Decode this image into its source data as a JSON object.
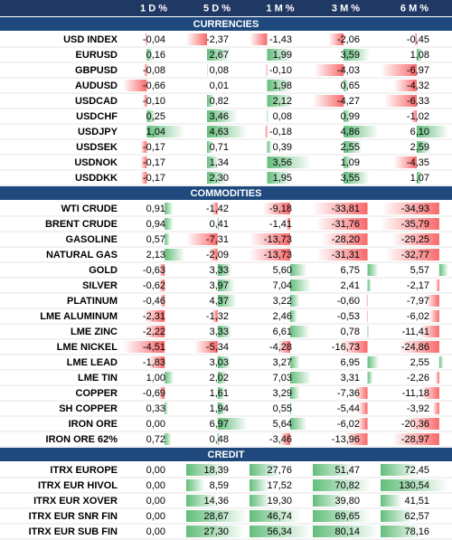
{
  "header": {
    "columns": [
      "1 D %",
      "5 D %",
      "1 M %",
      "3 M %",
      "6 M %"
    ]
  },
  "sections": [
    {
      "title": "CURRENCIES",
      "rows": [
        {
          "label": "USD INDEX",
          "values": [
            "-0,04",
            "-2,37",
            "-1,43",
            "-2,06",
            "-0,45"
          ]
        },
        {
          "label": "EURUSD",
          "values": [
            "0,16",
            "2,67",
            "1,99",
            "3,59",
            "1,08"
          ]
        },
        {
          "label": "GBPUSD",
          "values": [
            "-0,08",
            "0,08",
            "-0,10",
            "-4,03",
            "-6,97"
          ]
        },
        {
          "label": "AUDUSD",
          "values": [
            "-0,66",
            "0,01",
            "1,98",
            "0,65",
            "-4,32"
          ]
        },
        {
          "label": "USDCAD",
          "values": [
            "-0,10",
            "0,82",
            "2,12",
            "-4,27",
            "-6,33"
          ]
        },
        {
          "label": "USDCHF",
          "values": [
            "0,25",
            "3,46",
            "0,08",
            "0,99",
            "-1,02"
          ]
        },
        {
          "label": "USDJPY",
          "values": [
            "1,04",
            "4,63",
            "-0,18",
            "4,86",
            "6,10"
          ]
        },
        {
          "label": "USDSEK",
          "values": [
            "-0,17",
            "0,71",
            "0,39",
            "2,55",
            "2,59"
          ]
        },
        {
          "label": "USDNOK",
          "values": [
            "-0,17",
            "1,34",
            "3,56",
            "1,09",
            "-4,35"
          ]
        },
        {
          "label": "USDDKK",
          "values": [
            "-0,17",
            "2,30",
            "1,95",
            "3,55",
            "1,07"
          ]
        }
      ]
    },
    {
      "title": "COMMODITIES",
      "rows": [
        {
          "label": "WTI CRUDE",
          "values": [
            "0,91",
            "-1,42",
            "-9,18",
            "-33,81",
            "-34,93"
          ]
        },
        {
          "label": "BRENT CRUDE",
          "values": [
            "0,94",
            "0,41",
            "-1,41",
            "-31,76",
            "-35,79"
          ]
        },
        {
          "label": "GASOLINE",
          "values": [
            "0,57",
            "-7,31",
            "-13,73",
            "-28,20",
            "-29,25"
          ]
        },
        {
          "label": "NATURAL GAS",
          "values": [
            "2,13",
            "-2,09",
            "-13,73",
            "-31,31",
            "-32,77"
          ]
        },
        {
          "label": "GOLD",
          "values": [
            "-0,63",
            "3,33",
            "5,60",
            "6,75",
            "5,57"
          ]
        },
        {
          "label": "SILVER",
          "values": [
            "-0,62",
            "3,97",
            "7,04",
            "2,41",
            "-2,17"
          ]
        },
        {
          "label": "PLATINUM",
          "values": [
            "-0,46",
            "4,37",
            "3,22",
            "-0,60",
            "-7,97"
          ]
        },
        {
          "label": "LME ALUMINUM",
          "values": [
            "-2,31",
            "-1,32",
            "2,46",
            "-0,53",
            "-6,02"
          ]
        },
        {
          "label": "LME ZINC",
          "values": [
            "-2,22",
            "3,33",
            "6,61",
            "0,78",
            "-11,41"
          ]
        },
        {
          "label": "LME NICKEL",
          "values": [
            "-4,51",
            "-5,34",
            "-4,28",
            "-16,73",
            "-24,86"
          ]
        },
        {
          "label": "LME LEAD",
          "values": [
            "-1,83",
            "3,03",
            "3,27",
            "6,95",
            "2,55"
          ]
        },
        {
          "label": "LME TIN",
          "values": [
            "1,00",
            "2,02",
            "7,03",
            "3,31",
            "-2,26"
          ]
        },
        {
          "label": "COPPER",
          "values": [
            "-0,69",
            "1,61",
            "3,29",
            "-7,36",
            "-11,18"
          ]
        },
        {
          "label": "SH COPPER",
          "values": [
            "0,33",
            "1,94",
            "0,55",
            "-5,44",
            "-3,92"
          ]
        },
        {
          "label": "IRON ORE",
          "values": [
            "0,00",
            "6,97",
            "5,64",
            "-6,02",
            "-20,36"
          ]
        },
        {
          "label": "IRON ORE 62%",
          "values": [
            "0,72",
            "0,48",
            "-3,46",
            "-13,96",
            "-28,97"
          ]
        }
      ]
    },
    {
      "title": "CREDIT",
      "rows": [
        {
          "label": "ITRX EUROPE",
          "values": [
            "0,00",
            "18,39",
            "27,76",
            "51,47",
            "72,45"
          ]
        },
        {
          "label": "ITRX EUR HIVOL",
          "values": [
            "0,00",
            "8,59",
            "17,52",
            "70,82",
            "130,54"
          ]
        },
        {
          "label": "ITRX EUR XOVER",
          "values": [
            "0,00",
            "14,36",
            "19,30",
            "39,80",
            "41,51"
          ]
        },
        {
          "label": "ITRX EUR SNR FIN",
          "values": [
            "0,00",
            "28,67",
            "46,74",
            "69,65",
            "62,57"
          ]
        },
        {
          "label": "ITRX EUR SUB FIN",
          "values": [
            "0,00",
            "27,30",
            "56,34",
            "80,14",
            "78,16"
          ]
        }
      ]
    }
  ]
}
